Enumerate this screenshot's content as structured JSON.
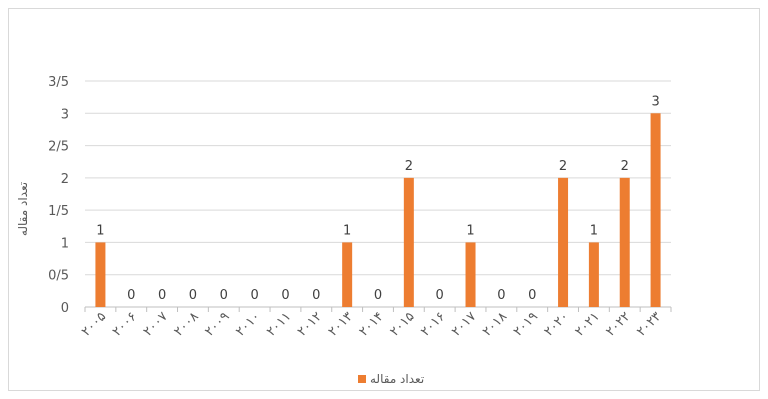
{
  "chart_data": {
    "type": "bar",
    "categories": [
      "۲۰۰۵",
      "۲۰۰۶",
      "۲۰۰۷",
      "۲۰۰۸",
      "۲۰۰۹",
      "۲۰۱۰",
      "۲۰۱۱",
      "۲۰۱۲",
      "۲۰۱۳",
      "۲۰۱۴",
      "۲۰۱۵",
      "۲۰۱۶",
      "۲۰۱۷",
      "۲۰۱۸",
      "۲۰۱۹",
      "۲۰۲۰",
      "۲۰۲۱",
      "۲۰۲۲",
      "۲۰۲۳"
    ],
    "series": [
      {
        "name": "تعداد مقاله",
        "values": [
          1,
          0,
          0,
          0,
          0,
          0,
          0,
          0,
          1,
          0,
          2,
          0,
          1,
          0,
          0,
          2,
          1,
          2,
          3
        ],
        "color": "#ed7d31"
      }
    ],
    "data_labels": [
      "1",
      "0",
      "0",
      "0",
      "0",
      "0",
      "0",
      "0",
      "1",
      "0",
      "2",
      "0",
      "1",
      "0",
      "0",
      "2",
      "1",
      "2",
      "3"
    ],
    "ylabel": "تعداد مقاله",
    "ylim": [
      0,
      3.5
    ],
    "yticks": [
      0,
      0.5,
      1,
      1.5,
      2,
      2.5,
      3,
      3.5
    ],
    "ytick_labels": [
      "0",
      "0/5",
      "1",
      "1/5",
      "2",
      "2/5",
      "3",
      "3/5"
    ],
    "grid": true,
    "legend": "bottom"
  }
}
